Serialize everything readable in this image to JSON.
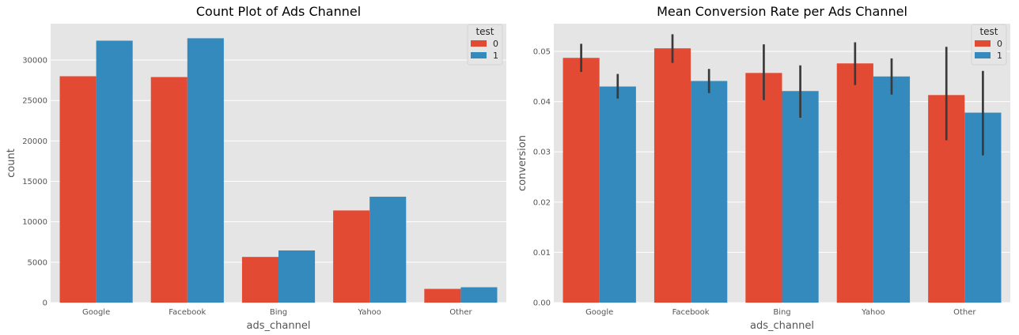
{
  "colors": {
    "test0": "#E24A33",
    "test1": "#348ABD",
    "axes_bg": "#E5E5E5",
    "grid": "#FFFFFF",
    "errbar": "#3A3A3A"
  },
  "chart_data": [
    {
      "type": "bar",
      "title": "Count Plot of Ads Channel",
      "xlabel": "ads_channel",
      "ylabel": "count",
      "categories": [
        "Google",
        "Facebook",
        "Bing",
        "Yahoo",
        "Other"
      ],
      "yticks": [
        "0",
        "5000",
        "10000",
        "15000",
        "20000",
        "25000",
        "30000"
      ],
      "ytick_values": [
        0,
        5000,
        10000,
        15000,
        20000,
        25000,
        30000
      ],
      "ylim": [
        0,
        34500
      ],
      "legend": {
        "title": "test",
        "position": "upper right",
        "labels": [
          "0",
          "1"
        ]
      },
      "series": [
        {
          "name": "0",
          "values": [
            28000,
            27900,
            5650,
            11400,
            1700
          ]
        },
        {
          "name": "1",
          "values": [
            32400,
            32700,
            6450,
            13100,
            1900
          ]
        }
      ],
      "grid": true
    },
    {
      "type": "bar",
      "title": "Mean Conversion Rate per Ads Channel",
      "xlabel": "ads_channel",
      "ylabel": "conversion",
      "categories": [
        "Google",
        "Facebook",
        "Bing",
        "Yahoo",
        "Other"
      ],
      "yticks": [
        "0.00",
        "0.01",
        "0.02",
        "0.03",
        "0.04",
        "0.05"
      ],
      "ytick_values": [
        0,
        0.01,
        0.02,
        0.03,
        0.04,
        0.05
      ],
      "ylim": [
        0,
        0.0555
      ],
      "legend": {
        "title": "test",
        "position": "upper right",
        "labels": [
          "0",
          "1"
        ]
      },
      "series": [
        {
          "name": "0",
          "values": [
            0.0487,
            0.0506,
            0.0457,
            0.0476,
            0.0413
          ],
          "err_low": [
            0.0459,
            0.0477,
            0.0403,
            0.0433,
            0.0323
          ],
          "err_high": [
            0.0515,
            0.0534,
            0.0514,
            0.0518,
            0.0509
          ]
        },
        {
          "name": "1",
          "values": [
            0.043,
            0.0441,
            0.0421,
            0.045,
            0.0378
          ],
          "err_low": [
            0.0406,
            0.0417,
            0.0368,
            0.0414,
            0.0293
          ],
          "err_high": [
            0.0455,
            0.0465,
            0.0472,
            0.0486,
            0.0461
          ]
        }
      ],
      "grid": true
    }
  ]
}
